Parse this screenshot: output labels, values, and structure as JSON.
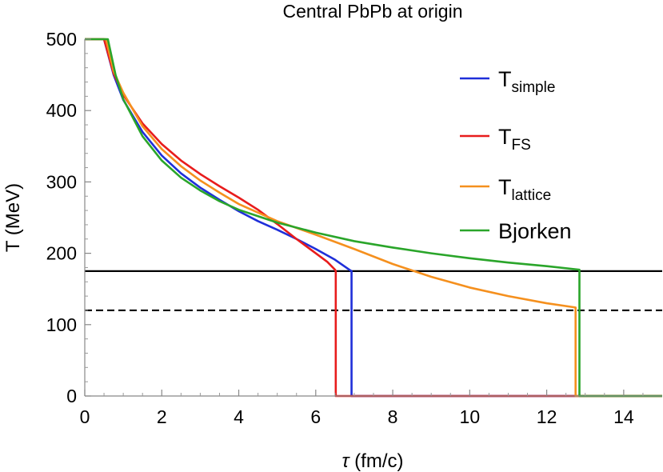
{
  "chart_data": {
    "type": "line",
    "title": "Central PbPb at origin",
    "xlabel_symbol": "τ",
    "xlabel_unit": " (fm/c)",
    "ylabel": "T (MeV)",
    "xlim": [
      0,
      15
    ],
    "ylim": [
      0,
      500
    ],
    "x_ticks": [
      0,
      2,
      4,
      6,
      8,
      10,
      12,
      14
    ],
    "y_ticks": [
      0,
      100,
      200,
      300,
      400,
      500
    ],
    "grid": false,
    "legend_position": "top-right",
    "reference_lines": [
      {
        "y": 175,
        "style": "solid",
        "color": "#000000"
      },
      {
        "y": 120,
        "style": "dashed",
        "color": "#000000"
      }
    ],
    "series": [
      {
        "name": "T",
        "name_sub": "simple",
        "color": "#1f2fd9",
        "points": [
          [
            0,
            500
          ],
          [
            0.5,
            500
          ],
          [
            0.75,
            450
          ],
          [
            1.0,
            415
          ],
          [
            1.5,
            370
          ],
          [
            2.0,
            337
          ],
          [
            2.5,
            312
          ],
          [
            3.0,
            292
          ],
          [
            3.5,
            275
          ],
          [
            4.0,
            259
          ],
          [
            4.5,
            245
          ],
          [
            5.0,
            233
          ],
          [
            5.5,
            220
          ],
          [
            6.0,
            206
          ],
          [
            6.5,
            191
          ],
          [
            6.9,
            176
          ],
          [
            6.93,
            175
          ],
          [
            6.93,
            0
          ],
          [
            15,
            0
          ]
        ]
      },
      {
        "name": "T",
        "name_sub": "FS",
        "color": "#e81c1c",
        "points": [
          [
            0,
            500
          ],
          [
            0.5,
            500
          ],
          [
            0.75,
            452
          ],
          [
            1.0,
            422
          ],
          [
            1.5,
            382
          ],
          [
            2.0,
            353
          ],
          [
            2.5,
            330
          ],
          [
            3.0,
            311
          ],
          [
            3.5,
            294
          ],
          [
            4.0,
            278
          ],
          [
            4.5,
            261
          ],
          [
            5.0,
            241
          ],
          [
            5.5,
            220
          ],
          [
            6.0,
            200
          ],
          [
            6.3,
            188
          ],
          [
            6.5,
            177
          ],
          [
            6.52,
            175
          ],
          [
            6.52,
            0
          ],
          [
            15,
            0
          ]
        ]
      },
      {
        "name": "T",
        "name_sub": "lattice",
        "color": "#f5901e",
        "points": [
          [
            0,
            500
          ],
          [
            0.55,
            500
          ],
          [
            0.75,
            455
          ],
          [
            1.0,
            425
          ],
          [
            1.5,
            378
          ],
          [
            2.0,
            346
          ],
          [
            2.5,
            322
          ],
          [
            3.0,
            302
          ],
          [
            3.5,
            285
          ],
          [
            4.0,
            269
          ],
          [
            5.0,
            245
          ],
          [
            6.0,
            226
          ],
          [
            7.0,
            206
          ],
          [
            8.0,
            185
          ],
          [
            9.0,
            167
          ],
          [
            10.0,
            152
          ],
          [
            11.0,
            140
          ],
          [
            12.0,
            130
          ],
          [
            12.75,
            124
          ],
          [
            12.75,
            0
          ],
          [
            15,
            0
          ]
        ]
      },
      {
        "name": "Bjorken",
        "name_sub": "",
        "color": "#2aa52a",
        "points": [
          [
            0,
            500
          ],
          [
            0.6,
            500
          ],
          [
            0.8,
            450
          ],
          [
            1.0,
            416
          ],
          [
            1.5,
            364
          ],
          [
            2.0,
            330
          ],
          [
            2.5,
            306
          ],
          [
            3.0,
            288
          ],
          [
            3.5,
            273
          ],
          [
            4.0,
            261
          ],
          [
            4.5,
            252
          ],
          [
            5.0,
            243
          ],
          [
            6.0,
            229
          ],
          [
            7.0,
            217
          ],
          [
            8.0,
            208
          ],
          [
            9.0,
            200
          ],
          [
            10.0,
            193
          ],
          [
            11.0,
            187
          ],
          [
            12.0,
            182
          ],
          [
            12.85,
            177
          ],
          [
            12.85,
            0
          ],
          [
            15,
            0
          ]
        ]
      }
    ]
  }
}
